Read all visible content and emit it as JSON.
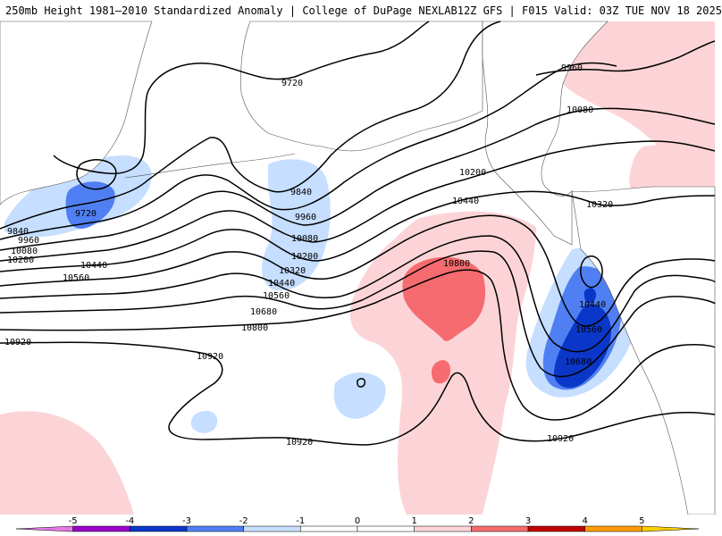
{
  "header": {
    "left_title": "250mb Height 1981–2010 Standardized Anomaly | College of DuPage NEXLAB",
    "right_title": "12Z GFS | F015 Valid: 03Z TUE NOV 18 2025"
  },
  "colors": {
    "neg5": "#e879e8",
    "neg4": "#9a00c8",
    "neg3": "#0b37c9",
    "neg2": "#4f7ff2",
    "neg1": "#c6deff",
    "pos1": "#fcd4d7",
    "pos2": "#f56b6f",
    "pos3": "#c10000",
    "pos4": "#ff9a00",
    "pos5": "#ffd000",
    "land": "#ffffff",
    "contour": "#000000"
  },
  "contour_labels": [
    "9720",
    "9720",
    "9840",
    "9960",
    "10080",
    "10200",
    "10440",
    "10560",
    "9840",
    "9960",
    "10080",
    "10200",
    "10320",
    "10440",
    "10560",
    "10680",
    "10800",
    "10920",
    "10920",
    "10920",
    "10920",
    "10800",
    "10440",
    "10200",
    "10080",
    "9960",
    "10320",
    "10440",
    "10560",
    "10680"
  ],
  "legend": {
    "ticks": [
      "-5",
      "-4",
      "-3",
      "-2",
      "-1",
      "0",
      "1",
      "2",
      "3",
      "4",
      "5"
    ]
  }
}
